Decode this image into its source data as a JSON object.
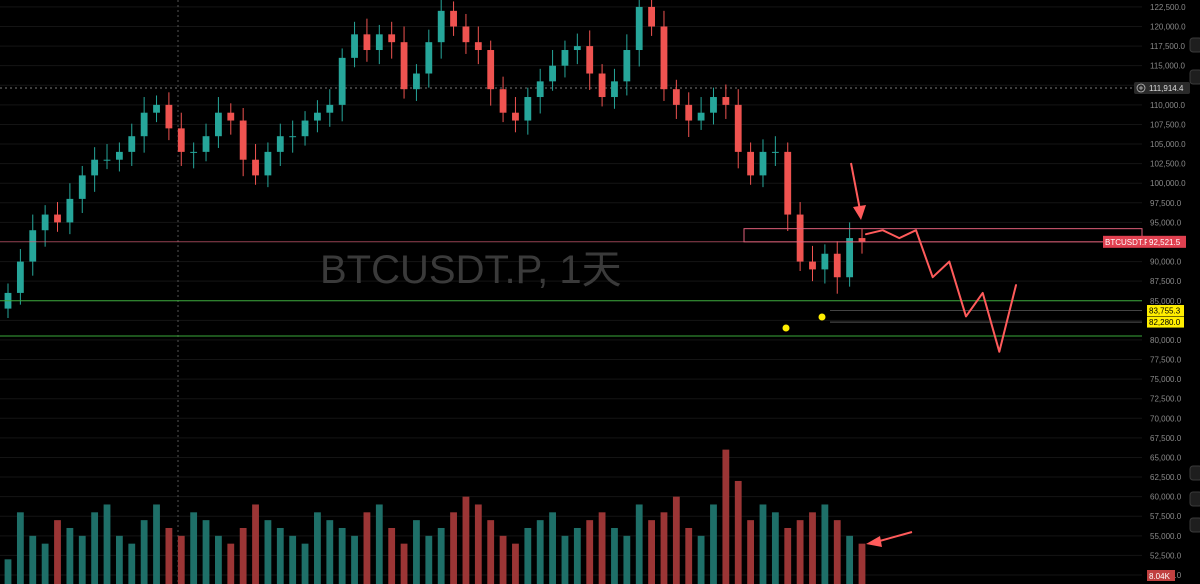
{
  "colors": {
    "background": "#000000",
    "up": "#26a69a",
    "down": "#ef5350",
    "grid": "#141414",
    "axis_text": "#8a8a8a",
    "support_line": "#3aa83a",
    "resistance_box": "#e0607a",
    "projection": "#ff5b5b",
    "highlight_tag": "#ffee00"
  },
  "watermark": "BTCUSDT.P, 1天",
  "crosshair_price": "111,914.4",
  "y_ticks": [
    "122,500.0",
    "120,000.0",
    "117,500.0",
    "115,000.0",
    "112,500.0",
    "110,000.0",
    "107,500.0",
    "105,000.0",
    "102,500.0",
    "100,000.0",
    "97,500.0",
    "95,000.0",
    "92,500.0",
    "90,000.0",
    "87,500.0",
    "85,000.0",
    "82,500.0",
    "80,000.0",
    "77,500.0",
    "75,000.0",
    "72,500.0",
    "70,000.0",
    "67,500.0",
    "65,000.0",
    "62,500.0",
    "60,000.0",
    "57,500.0",
    "55,000.0",
    "52,500.0",
    "50,000.0"
  ],
  "price_tags": {
    "symbol": "BTCUSDT.P",
    "last_price": "92,521.5",
    "level_1": "83,755.3",
    "level_2": "82,280.0"
  },
  "volume_tag": "8.04K",
  "chart_data": {
    "type": "candlestick",
    "symbol": "BTCUSDT.P",
    "interval": "1天",
    "y_axis": {
      "range": [
        50000,
        123000
      ],
      "unit": "USDT"
    },
    "last_price": 92521.5,
    "horizontal_levels": [
      85000,
      83755.3,
      82280,
      80500
    ],
    "resistance_zone": [
      92521.5,
      94200
    ],
    "projection_path": [
      {
        "step": 0,
        "price": 93500
      },
      {
        "step": 1,
        "price": 94000
      },
      {
        "step": 2,
        "price": 93000
      },
      {
        "step": 3,
        "price": 94000
      },
      {
        "step": 4,
        "price": 88000
      },
      {
        "step": 5,
        "price": 90000
      },
      {
        "step": 6,
        "price": 83000
      },
      {
        "step": 7,
        "price": 86000
      },
      {
        "step": 8,
        "price": 78500
      },
      {
        "step": 9,
        "price": 87000
      }
    ],
    "candle_path_estimate": [
      86000,
      90000,
      94000,
      96000,
      95000,
      98000,
      101000,
      103000,
      103000,
      104000,
      106000,
      109000,
      110000,
      107000,
      104000,
      104000,
      106000,
      109000,
      108000,
      103000,
      101000,
      104000,
      106000,
      106000,
      108000,
      109000,
      110000,
      116000,
      119000,
      117000,
      119000,
      118000,
      112000,
      114000,
      118000,
      122000,
      120000,
      118000,
      117000,
      112000,
      109000,
      108000,
      111000,
      113000,
      115000,
      117000,
      117500,
      114000,
      111000,
      113000,
      117000,
      122500,
      120000,
      112000,
      110000,
      108000,
      109000,
      111000,
      110000,
      104000,
      101000,
      104000,
      104000,
      96000,
      90000,
      89000,
      91000,
      88000,
      93000,
      92521.5
    ],
    "volume_estimate": [
      52,
      58,
      55,
      54,
      57,
      56,
      55,
      58,
      59,
      55,
      54,
      57,
      59,
      56,
      55,
      58,
      57,
      55,
      54,
      56,
      59,
      57,
      56,
      55,
      54,
      58,
      57,
      56,
      55,
      58,
      59,
      56,
      54,
      57,
      55,
      56,
      58,
      60,
      59,
      57,
      55,
      54,
      56,
      57,
      58,
      55,
      56,
      57,
      58,
      56,
      55,
      59,
      57,
      58,
      60,
      56,
      55,
      59,
      66,
      62,
      57,
      59,
      58,
      56,
      57,
      58,
      59,
      57,
      55,
      54
    ],
    "volume_axis_note": "volume bars plotted on the same price-scale area near 50,000–67,500"
  }
}
